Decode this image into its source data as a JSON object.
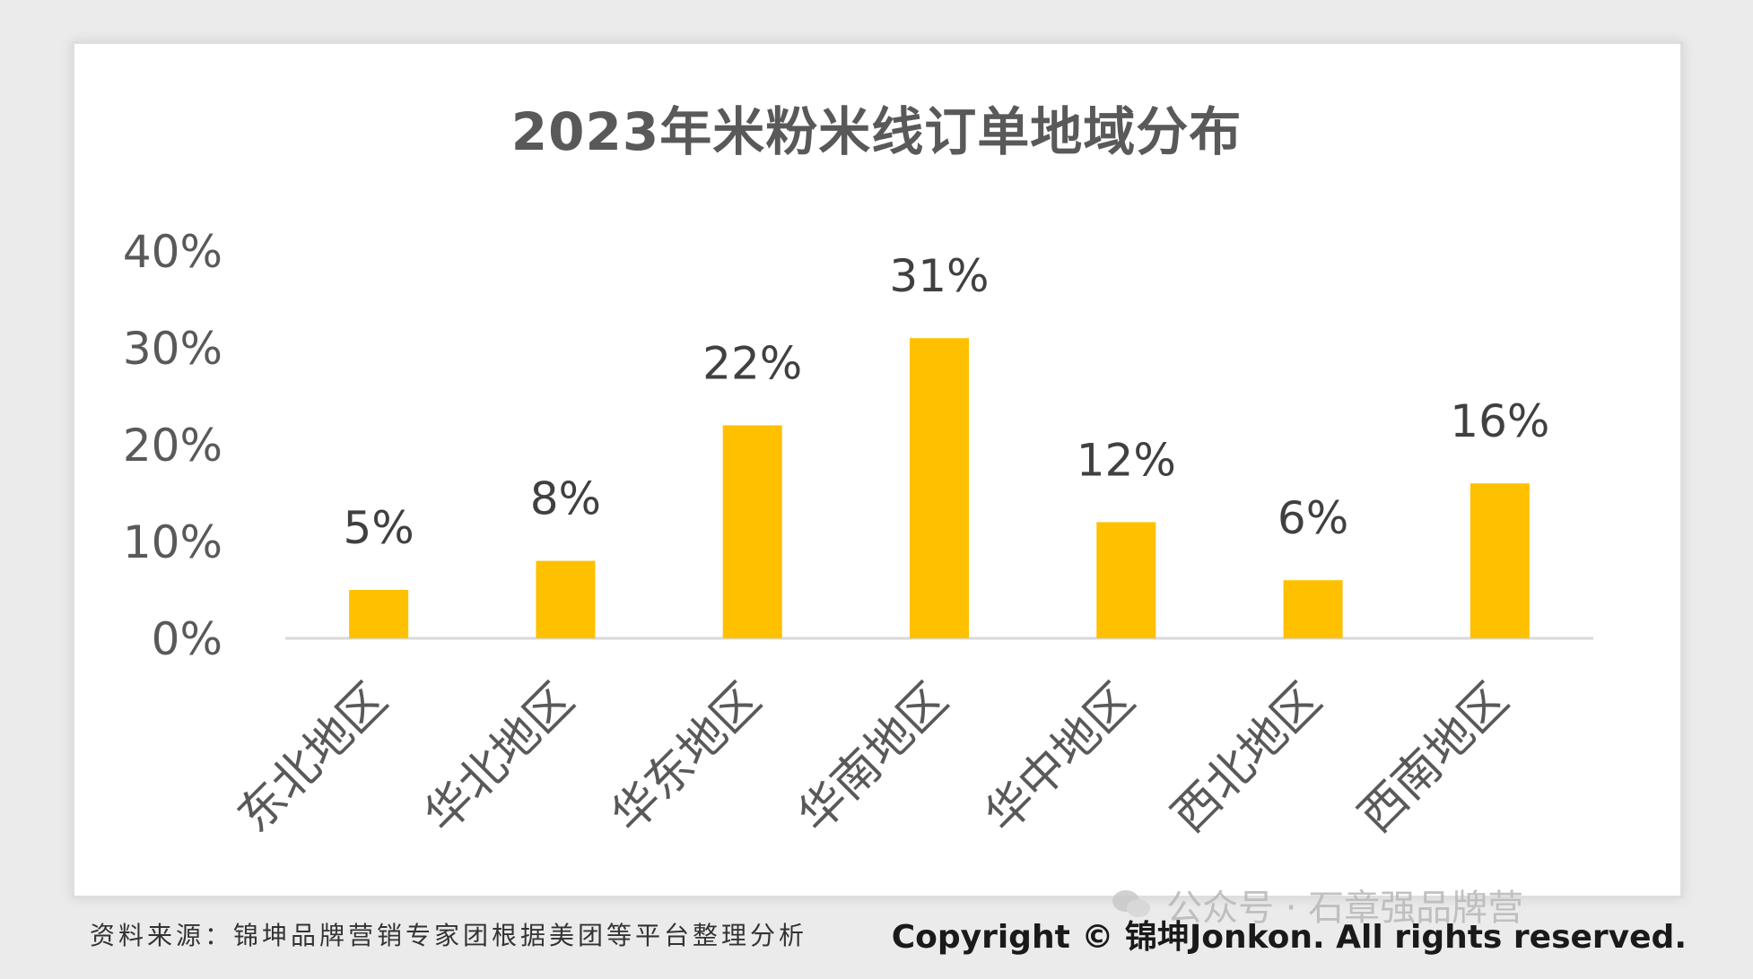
{
  "chart_data": {
    "type": "bar",
    "title": "2023年米粉米线订单地域分布",
    "categories": [
      "东北地区",
      "华北地区",
      "华东地区",
      "华南地区",
      "华中地区",
      "西北地区",
      "西南地区"
    ],
    "values": [
      5,
      8,
      22,
      31,
      12,
      6,
      16
    ],
    "data_labels": [
      "5%",
      "8%",
      "22%",
      "31%",
      "12%",
      "6%",
      "16%"
    ],
    "y_ticks": [
      "0%",
      "10%",
      "20%",
      "30%",
      "40%"
    ],
    "ylim": [
      0,
      40
    ],
    "bar_color": "#ffc000",
    "grid": false,
    "legend": "none"
  },
  "footer": {
    "source": "资料来源：锦坤品牌营销专家团根据美团等平台整理分析",
    "copyright": "Copyright © 锦坤Jonkon. All rights reserved."
  },
  "watermark": {
    "text": "公众号 · 石章强品牌营",
    "icon": "wechat-icon"
  }
}
